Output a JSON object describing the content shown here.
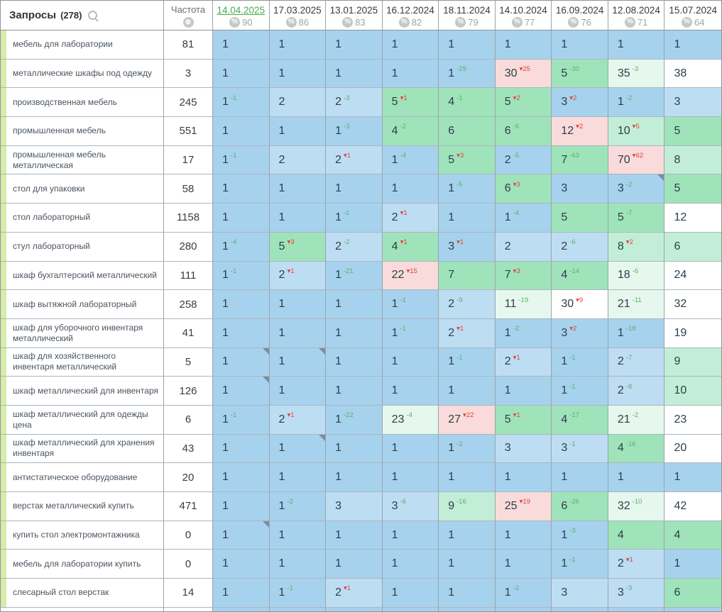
{
  "header": {
    "queries_label": "Запросы",
    "queries_count": "(278)",
    "frequency_label": "Частота",
    "date_columns": [
      {
        "date": "14.04.2025",
        "visibility_pct": 90,
        "active": true
      },
      {
        "date": "17.03.2025",
        "visibility_pct": 86,
        "active": false
      },
      {
        "date": "13.01.2025",
        "visibility_pct": 83,
        "active": false
      },
      {
        "date": "16.12.2024",
        "visibility_pct": 82,
        "active": false
      },
      {
        "date": "18.11.2024",
        "visibility_pct": 79,
        "active": false
      },
      {
        "date": "14.10.2024",
        "visibility_pct": 77,
        "active": false
      },
      {
        "date": "16.09.2024",
        "visibility_pct": 76,
        "active": false
      },
      {
        "date": "12.08.2024",
        "visibility_pct": 71,
        "active": false
      },
      {
        "date": "15.07.2024",
        "visibility_pct": 64,
        "active": false
      }
    ]
  },
  "icons": {
    "search": "magnifier",
    "frequency_globe_glyph": "⊕",
    "percent_badge_glyph": "%"
  },
  "glyphs": {
    "delta_decline_prefix": "▾",
    "delta_improve_prefix": "-"
  },
  "colors": {
    "accent_green": "#47ad52",
    "delta_improve": "#57b262",
    "delta_decline": "#e0433c",
    "keyword_strip": "#d6eda9",
    "cell_palette": {
      "b1": "#a6d2ee",
      "b2": "#bdddf3",
      "g": "#9fe3bb",
      "gl": "#c2eed7",
      "gp": "#e6f7ee",
      "w": "#ffffff",
      "r": "#f8dbda"
    }
  },
  "rows": [
    {
      "keyword": "мебель для лаборатории",
      "frequency": 81,
      "cells": [
        {
          "v": 1,
          "bg": "b1"
        },
        {
          "v": 1,
          "bg": "b1"
        },
        {
          "v": 1,
          "bg": "b1"
        },
        {
          "v": 1,
          "bg": "b1"
        },
        {
          "v": 1,
          "bg": "b1"
        },
        {
          "v": 1,
          "bg": "b1"
        },
        {
          "v": 1,
          "bg": "b1"
        },
        {
          "v": 1,
          "bg": "b1"
        },
        {
          "v": 1,
          "bg": "b1"
        }
      ]
    },
    {
      "keyword": "металлические шкафы под одежду",
      "frequency": 3,
      "cells": [
        {
          "v": 1,
          "bg": "b1"
        },
        {
          "v": 1,
          "bg": "b1"
        },
        {
          "v": 1,
          "bg": "b1"
        },
        {
          "v": 1,
          "bg": "b1"
        },
        {
          "v": 1,
          "d": -29,
          "bg": "b1"
        },
        {
          "v": 30,
          "d": 25,
          "bg": "r"
        },
        {
          "v": 5,
          "d": -30,
          "bg": "g"
        },
        {
          "v": 35,
          "d": -3,
          "bg": "gp"
        },
        {
          "v": 38,
          "bg": "w"
        }
      ]
    },
    {
      "keyword": "производственная мебель",
      "frequency": 245,
      "cells": [
        {
          "v": 1,
          "d": -1,
          "bg": "b1"
        },
        {
          "v": 2,
          "bg": "b2"
        },
        {
          "v": 2,
          "d": -3,
          "bg": "b2"
        },
        {
          "v": 5,
          "d": 1,
          "bg": "g"
        },
        {
          "v": 4,
          "d": -1,
          "bg": "g"
        },
        {
          "v": 5,
          "d": 2,
          "bg": "g"
        },
        {
          "v": 3,
          "d": 2,
          "bg": "b1"
        },
        {
          "v": 1,
          "d": -2,
          "bg": "b1"
        },
        {
          "v": 3,
          "bg": "b2"
        }
      ]
    },
    {
      "keyword": "промышленная мебель",
      "frequency": 551,
      "cells": [
        {
          "v": 1,
          "bg": "b1"
        },
        {
          "v": 1,
          "bg": "b1"
        },
        {
          "v": 1,
          "d": -3,
          "bg": "b1"
        },
        {
          "v": 4,
          "d": -2,
          "bg": "g"
        },
        {
          "v": 6,
          "bg": "g"
        },
        {
          "v": 6,
          "d": -6,
          "bg": "g"
        },
        {
          "v": 12,
          "d": 2,
          "bg": "r"
        },
        {
          "v": 10,
          "d": 5,
          "bg": "gl"
        },
        {
          "v": 5,
          "bg": "g"
        }
      ]
    },
    {
      "keyword": "промышленная мебель металлическая",
      "frequency": 17,
      "cells": [
        {
          "v": 1,
          "d": -1,
          "bg": "b1"
        },
        {
          "v": 2,
          "bg": "b2"
        },
        {
          "v": 2,
          "d": 1,
          "bg": "b2"
        },
        {
          "v": 1,
          "d": -4,
          "bg": "b1"
        },
        {
          "v": 5,
          "d": 3,
          "bg": "g"
        },
        {
          "v": 2,
          "d": -5,
          "bg": "b1"
        },
        {
          "v": 7,
          "d": -63,
          "bg": "g"
        },
        {
          "v": 70,
          "d": 62,
          "bg": "r"
        },
        {
          "v": 8,
          "bg": "gl"
        }
      ]
    },
    {
      "keyword": "стол для упаковки",
      "frequency": 58,
      "cells": [
        {
          "v": 1,
          "bg": "b1"
        },
        {
          "v": 1,
          "bg": "b1"
        },
        {
          "v": 1,
          "bg": "b1"
        },
        {
          "v": 1,
          "bg": "b1"
        },
        {
          "v": 1,
          "d": -5,
          "bg": "b1"
        },
        {
          "v": 6,
          "d": 3,
          "bg": "g"
        },
        {
          "v": 3,
          "bg": "b1"
        },
        {
          "v": 3,
          "d": -2,
          "bg": "b1",
          "marker": true
        },
        {
          "v": 5,
          "bg": "g"
        }
      ]
    },
    {
      "keyword": "стол лабораторный",
      "frequency": 1158,
      "cells": [
        {
          "v": 1,
          "bg": "b1"
        },
        {
          "v": 1,
          "bg": "b1"
        },
        {
          "v": 1,
          "d": -1,
          "bg": "b1"
        },
        {
          "v": 2,
          "d": 1,
          "bg": "b2"
        },
        {
          "v": 1,
          "bg": "b1"
        },
        {
          "v": 1,
          "d": -4,
          "bg": "b1"
        },
        {
          "v": 5,
          "bg": "g"
        },
        {
          "v": 5,
          "d": -7,
          "bg": "g"
        },
        {
          "v": 12,
          "bg": "w"
        }
      ]
    },
    {
      "keyword": "стул лабораторный",
      "frequency": 280,
      "cells": [
        {
          "v": 1,
          "d": -4,
          "bg": "b1"
        },
        {
          "v": 5,
          "d": 3,
          "bg": "g"
        },
        {
          "v": 2,
          "d": -2,
          "bg": "b2"
        },
        {
          "v": 4,
          "d": 1,
          "bg": "g"
        },
        {
          "v": 3,
          "d": 1,
          "bg": "b1"
        },
        {
          "v": 2,
          "bg": "b2"
        },
        {
          "v": 2,
          "d": -6,
          "bg": "b2"
        },
        {
          "v": 8,
          "d": 2,
          "bg": "gl"
        },
        {
          "v": 6,
          "bg": "gl"
        }
      ]
    },
    {
      "keyword": "шкаф бухгалтерский металлический",
      "frequency": 111,
      "cells": [
        {
          "v": 1,
          "d": -1,
          "bg": "b1"
        },
        {
          "v": 2,
          "d": 1,
          "bg": "b2"
        },
        {
          "v": 1,
          "d": -21,
          "bg": "b1"
        },
        {
          "v": 22,
          "d": 15,
          "bg": "r"
        },
        {
          "v": 7,
          "bg": "g"
        },
        {
          "v": 7,
          "d": 3,
          "bg": "g"
        },
        {
          "v": 4,
          "d": -14,
          "bg": "g"
        },
        {
          "v": 18,
          "d": -6,
          "bg": "gp"
        },
        {
          "v": 24,
          "bg": "w"
        }
      ]
    },
    {
      "keyword": "шкаф вытяжной лабораторный",
      "frequency": 258,
      "cells": [
        {
          "v": 1,
          "bg": "b1"
        },
        {
          "v": 1,
          "bg": "b1"
        },
        {
          "v": 1,
          "bg": "b1"
        },
        {
          "v": 1,
          "d": -1,
          "bg": "b1"
        },
        {
          "v": 2,
          "d": -9,
          "bg": "b2"
        },
        {
          "v": 11,
          "d": -19,
          "bg": "gp"
        },
        {
          "v": 30,
          "d": 9,
          "bg": "w"
        },
        {
          "v": 21,
          "d": -11,
          "bg": "gp"
        },
        {
          "v": 32,
          "bg": "w"
        }
      ]
    },
    {
      "keyword": "шкаф для уборочного инвентаря металлический",
      "frequency": 41,
      "cells": [
        {
          "v": 1,
          "bg": "b1"
        },
        {
          "v": 1,
          "bg": "b1"
        },
        {
          "v": 1,
          "bg": "b1"
        },
        {
          "v": 1,
          "d": -1,
          "bg": "b1"
        },
        {
          "v": 2,
          "d": 1,
          "bg": "b2"
        },
        {
          "v": 1,
          "d": -2,
          "bg": "b1"
        },
        {
          "v": 3,
          "d": 2,
          "bg": "b1"
        },
        {
          "v": 1,
          "d": -18,
          "bg": "b1"
        },
        {
          "v": 19,
          "bg": "w"
        }
      ]
    },
    {
      "keyword": "шкаф для хозяйственного инвентаря металлический",
      "frequency": 5,
      "cells": [
        {
          "v": 1,
          "bg": "b1",
          "marker": true
        },
        {
          "v": 1,
          "bg": "b1",
          "marker": true
        },
        {
          "v": 1,
          "bg": "b1"
        },
        {
          "v": 1,
          "bg": "b1"
        },
        {
          "v": 1,
          "d": -1,
          "bg": "b1"
        },
        {
          "v": 2,
          "d": 1,
          "bg": "b2"
        },
        {
          "v": 1,
          "d": -1,
          "bg": "b1"
        },
        {
          "v": 2,
          "d": -7,
          "bg": "b2"
        },
        {
          "v": 9,
          "bg": "gl"
        }
      ]
    },
    {
      "keyword": "шкаф металлический для инвентаря",
      "frequency": 126,
      "cells": [
        {
          "v": 1,
          "bg": "b1",
          "marker": true
        },
        {
          "v": 1,
          "bg": "b1"
        },
        {
          "v": 1,
          "bg": "b1"
        },
        {
          "v": 1,
          "bg": "b1"
        },
        {
          "v": 1,
          "bg": "b1"
        },
        {
          "v": 1,
          "bg": "b1"
        },
        {
          "v": 1,
          "d": -1,
          "bg": "b1"
        },
        {
          "v": 2,
          "d": -8,
          "bg": "b2"
        },
        {
          "v": 10,
          "bg": "gl"
        }
      ]
    },
    {
      "keyword": "шкаф металлический для одежды цена",
      "frequency": 6,
      "cells": [
        {
          "v": 1,
          "d": -1,
          "bg": "b1"
        },
        {
          "v": 2,
          "d": 1,
          "bg": "b2"
        },
        {
          "v": 1,
          "d": -22,
          "bg": "b1"
        },
        {
          "v": 23,
          "d": -4,
          "bg": "gp"
        },
        {
          "v": 27,
          "d": 22,
          "bg": "r"
        },
        {
          "v": 5,
          "d": 1,
          "bg": "g"
        },
        {
          "v": 4,
          "d": -17,
          "bg": "g"
        },
        {
          "v": 21,
          "d": -2,
          "bg": "gp"
        },
        {
          "v": 23,
          "bg": "w"
        }
      ]
    },
    {
      "keyword": "шкаф металлический для хранения инвентаря",
      "frequency": 43,
      "cells": [
        {
          "v": 1,
          "bg": "b1"
        },
        {
          "v": 1,
          "bg": "b1",
          "marker": true
        },
        {
          "v": 1,
          "bg": "b1"
        },
        {
          "v": 1,
          "bg": "b1"
        },
        {
          "v": 1,
          "d": -2,
          "bg": "b1"
        },
        {
          "v": 3,
          "bg": "b2"
        },
        {
          "v": 3,
          "d": -1,
          "bg": "b2"
        },
        {
          "v": 4,
          "d": -16,
          "bg": "g"
        },
        {
          "v": 20,
          "bg": "w"
        }
      ]
    },
    {
      "keyword": "антистатическое оборудование",
      "frequency": 20,
      "cells": [
        {
          "v": 1,
          "bg": "b1"
        },
        {
          "v": 1,
          "bg": "b1"
        },
        {
          "v": 1,
          "bg": "b1"
        },
        {
          "v": 1,
          "bg": "b1"
        },
        {
          "v": 1,
          "bg": "b1"
        },
        {
          "v": 1,
          "bg": "b1"
        },
        {
          "v": 1,
          "bg": "b1"
        },
        {
          "v": 1,
          "bg": "b1"
        },
        {
          "v": 1,
          "bg": "b1"
        }
      ]
    },
    {
      "keyword": "верстак металлический купить",
      "frequency": 471,
      "cells": [
        {
          "v": 1,
          "bg": "b1"
        },
        {
          "v": 1,
          "d": -2,
          "bg": "b1"
        },
        {
          "v": 3,
          "bg": "b2"
        },
        {
          "v": 3,
          "d": -6,
          "bg": "b2"
        },
        {
          "v": 9,
          "d": -16,
          "bg": "gl"
        },
        {
          "v": 25,
          "d": 19,
          "bg": "r"
        },
        {
          "v": 6,
          "d": -26,
          "bg": "g"
        },
        {
          "v": 32,
          "d": -10,
          "bg": "gp"
        },
        {
          "v": 42,
          "bg": "w"
        }
      ]
    },
    {
      "keyword": "купить стол электромонтажника",
      "frequency": 0,
      "cells": [
        {
          "v": 1,
          "bg": "b1",
          "marker": true
        },
        {
          "v": 1,
          "bg": "b1"
        },
        {
          "v": 1,
          "bg": "b1"
        },
        {
          "v": 1,
          "bg": "b1"
        },
        {
          "v": 1,
          "bg": "b1"
        },
        {
          "v": 1,
          "bg": "b1"
        },
        {
          "v": 1,
          "d": -3,
          "bg": "b1"
        },
        {
          "v": 4,
          "bg": "g"
        },
        {
          "v": 4,
          "bg": "g"
        }
      ]
    },
    {
      "keyword": "мебель для лаборатории купить",
      "frequency": 0,
      "cells": [
        {
          "v": 1,
          "bg": "b1"
        },
        {
          "v": 1,
          "bg": "b1"
        },
        {
          "v": 1,
          "bg": "b1"
        },
        {
          "v": 1,
          "bg": "b1"
        },
        {
          "v": 1,
          "bg": "b1"
        },
        {
          "v": 1,
          "bg": "b1"
        },
        {
          "v": 1,
          "d": -1,
          "bg": "b1"
        },
        {
          "v": 2,
          "d": 1,
          "bg": "b2"
        },
        {
          "v": 1,
          "bg": "b1"
        }
      ]
    },
    {
      "keyword": "слесарный стол верстак",
      "frequency": 14,
      "cells": [
        {
          "v": 1,
          "bg": "b1"
        },
        {
          "v": 1,
          "d": -1,
          "bg": "b1"
        },
        {
          "v": 2,
          "d": 1,
          "bg": "b2"
        },
        {
          "v": 1,
          "bg": "b1"
        },
        {
          "v": 1,
          "bg": "b1"
        },
        {
          "v": 1,
          "d": -2,
          "bg": "b1"
        },
        {
          "v": 3,
          "bg": "b2"
        },
        {
          "v": 3,
          "d": -3,
          "bg": "b2"
        },
        {
          "v": 6,
          "bg": "g"
        }
      ]
    }
  ],
  "partial_row": {
    "visible": true,
    "bg": "b1"
  }
}
